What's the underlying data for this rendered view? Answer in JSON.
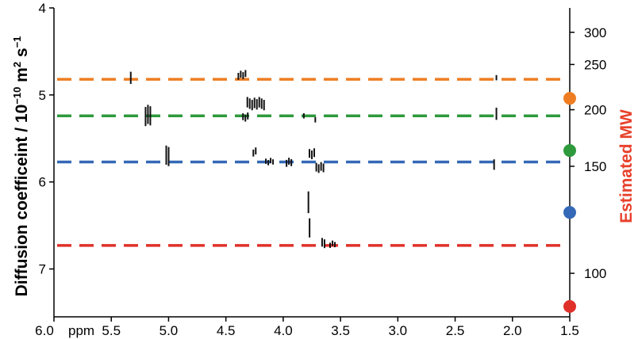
{
  "chart_data": {
    "type": "scatter",
    "title": "",
    "xlabel": "ppm",
    "x_ticks": [
      "6.0",
      "5.5",
      "5.0",
      "4.5",
      "4.0",
      "3.5",
      "3.0",
      "2.5",
      "2.0",
      "1.5"
    ],
    "x_tick_values": [
      6.0,
      5.5,
      5.0,
      4.5,
      4.0,
      3.5,
      3.0,
      2.5,
      2.0,
      1.5
    ],
    "xlim": [
      6.0,
      1.5
    ],
    "ylabel_left": {
      "main": "Diffusion coefficeint / 10",
      "exp1": "−10",
      "unit": " m",
      "exp2": "2",
      "unit2": " s",
      "exp3": "−1"
    },
    "y_ticks_left": [
      "4",
      "5",
      "6",
      "7"
    ],
    "y_tick_values_left": [
      4,
      5,
      6,
      7
    ],
    "ylim_left": [
      4.0,
      7.55
    ],
    "ylabel_right": "Estimated MW",
    "ylabel_right_color": "#e8412c",
    "y_ticks_right": [
      "300",
      "250",
      "200",
      "150",
      "100"
    ],
    "y_tick_positions_right": [
      4.28,
      4.65,
      5.17,
      5.82,
      7.05
    ],
    "reference_lines": [
      {
        "color": "#ee7d22",
        "y": 4.82,
        "mw": 222
      },
      {
        "color": "#2e9a3c",
        "y": 5.24,
        "mw": 175
      },
      {
        "color": "#3568b7",
        "y": 5.77,
        "mw": 132
      },
      {
        "color": "#e0302a",
        "y": 6.73,
        "mw": 86
      }
    ],
    "peaks": [
      {
        "x": 5.33,
        "y": 4.82,
        "len": 0.14,
        "n": 1
      },
      {
        "x": 5.18,
        "y": 5.24,
        "len": 0.22,
        "n": 3
      },
      {
        "x": 5.01,
        "y": 5.7,
        "len": 0.22,
        "n": 2
      },
      {
        "x": 4.36,
        "y": 4.77,
        "len": 0.08,
        "n": 4
      },
      {
        "x": 4.33,
        "y": 5.25,
        "len": 0.08,
        "n": 3
      },
      {
        "x": 4.24,
        "y": 5.1,
        "len": 0.12,
        "n": 8
      },
      {
        "x": 4.25,
        "y": 5.66,
        "len": 0.08,
        "n": 2
      },
      {
        "x": 4.12,
        "y": 5.77,
        "len": 0.06,
        "n": 4
      },
      {
        "x": 3.95,
        "y": 5.77,
        "len": 0.08,
        "n": 3
      },
      {
        "x": 3.82,
        "y": 5.24,
        "len": 0.06,
        "n": 1
      },
      {
        "x": 3.78,
        "y": 6.25,
        "len": 0.25,
        "n": 1
      },
      {
        "x": 3.77,
        "y": 6.52,
        "len": 0.22,
        "n": 1
      },
      {
        "x": 3.75,
        "y": 5.68,
        "len": 0.1,
        "n": 3
      },
      {
        "x": 3.72,
        "y": 5.27,
        "len": 0.06,
        "n": 1
      },
      {
        "x": 3.68,
        "y": 5.83,
        "len": 0.1,
        "n": 4
      },
      {
        "x": 3.65,
        "y": 6.71,
        "len": 0.1,
        "n": 2
      },
      {
        "x": 3.57,
        "y": 6.72,
        "len": 0.06,
        "n": 3
      },
      {
        "x": 2.14,
        "y": 4.81,
        "len": 0.06,
        "n": 1
      },
      {
        "x": 2.14,
        "y": 5.2,
        "len": 0.14,
        "n": 1
      },
      {
        "x": 2.16,
        "y": 5.8,
        "len": 0.12,
        "n": 1
      }
    ],
    "grid": false
  }
}
